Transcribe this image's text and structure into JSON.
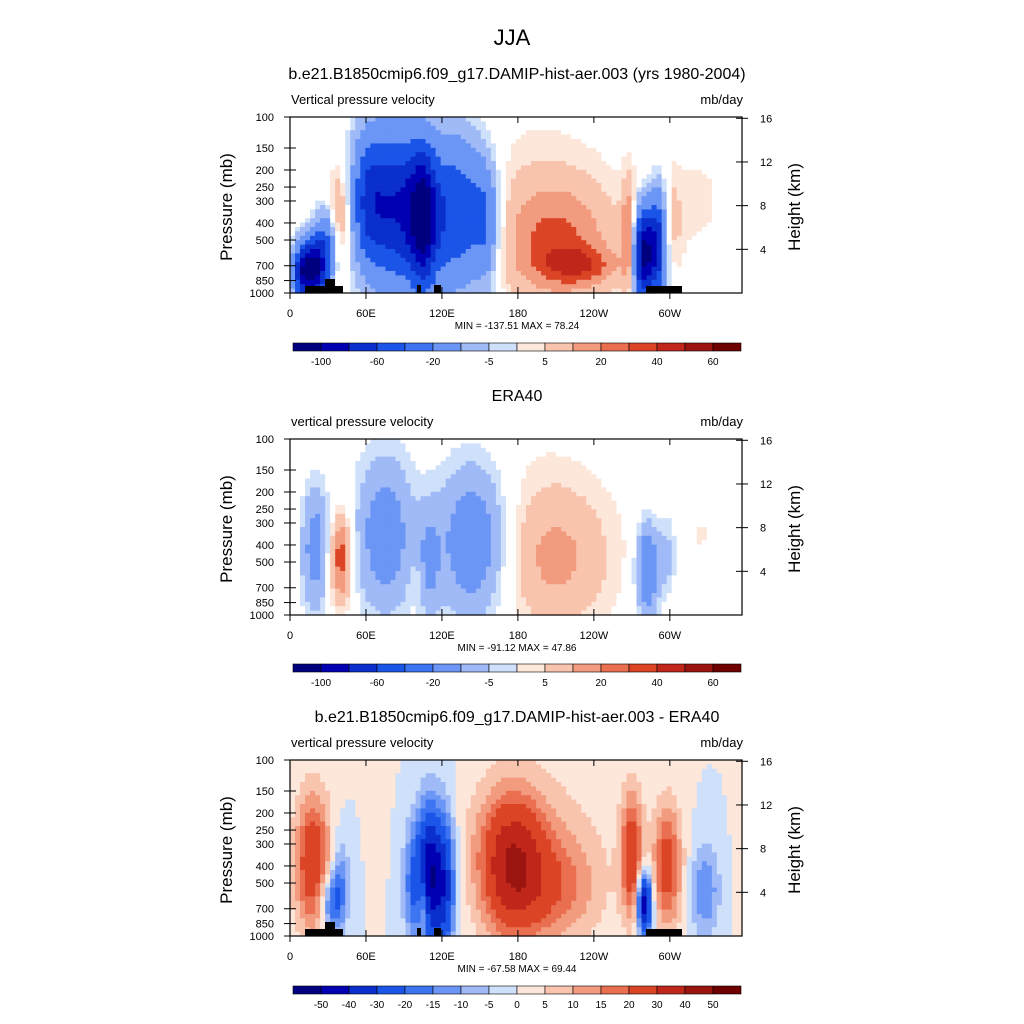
{
  "figure": {
    "title": "JJA"
  },
  "colors": {
    "scale": [
      "#00007f",
      "#0000b2",
      "#0a2fcc",
      "#1a55e8",
      "#3d74f2",
      "#6b96f5",
      "#9fbaf7",
      "#cfe0fb",
      "#ffffff",
      "#fde6da",
      "#f9c4ad",
      "#f29b7e",
      "#ea6e50",
      "#dc4426",
      "#c0261a",
      "#9b1410",
      "#6e0000"
    ]
  },
  "panels": [
    {
      "title": "b.e21.B1850cmip6.f09_g17.DAMIP-hist-aer.003 (yrs 1980-2004)",
      "left_label": "Vertical pressure velocity",
      "right_label": "mb/day",
      "ylabel": "Pressure (mb)",
      "ylabel_right": "Height (km)",
      "stats": "MIN = -137.51  MAX =  78.24",
      "colorbar_labels": [
        "-100",
        "-60",
        "-20",
        "-5",
        "5",
        "20",
        "40",
        "60"
      ]
    },
    {
      "title": "ERA40",
      "left_label": "vertical pressure velocity",
      "right_label": "mb/day",
      "ylabel": "Pressure (mb)",
      "ylabel_right": "Height (km)",
      "stats": "MIN = -91.12  MAX =  47.86",
      "colorbar_labels": [
        "-100",
        "-60",
        "-20",
        "-5",
        "5",
        "20",
        "40",
        "60"
      ]
    },
    {
      "title": "b.e21.B1850cmip6.f09_g17.DAMIP-hist-aer.003 - ERA40",
      "left_label": "vertical pressure velocity",
      "right_label": "mb/day",
      "ylabel": "Pressure (mb)",
      "ylabel_right": "Height (km)",
      "stats": "MIN = -67.58  MAX =  69.44",
      "colorbar_labels": [
        "-50",
        "-40",
        "-30",
        "-20",
        "-15",
        "-10",
        "-5",
        "0",
        "5",
        "10",
        "15",
        "20",
        "30",
        "40",
        "50"
      ]
    }
  ],
  "chart_data": {
    "type": "heatmap",
    "x_ticks": [
      "0",
      "60E",
      "120E",
      "180",
      "120W",
      "60W"
    ],
    "x_tick_values": [
      0,
      60,
      120,
      180,
      240,
      300
    ],
    "xlim": [
      0,
      357
    ],
    "y_ticks": [
      "100",
      "150",
      "200",
      "250",
      "300",
      "400",
      "500",
      "700",
      "850",
      "1000"
    ],
    "y_tick_values": [
      100,
      150,
      200,
      250,
      300,
      400,
      500,
      700,
      850,
      1000
    ],
    "ylim": [
      1000,
      100
    ],
    "y_scale": "log",
    "y2_ticks": [
      "4",
      "8",
      "12",
      "16"
    ],
    "y2_tick_values": [
      4,
      8,
      12,
      16
    ],
    "panels": [
      {
        "blobs": [
          {
            "lon": 10,
            "w": 6,
            "p": 760,
            "h": 0.35,
            "v": -70
          },
          {
            "lon": 20,
            "w": 7,
            "p": 720,
            "h": 0.4,
            "v": -90
          },
          {
            "lon": 30,
            "w": 6,
            "p": 500,
            "h": 0.45,
            "v": -40
          },
          {
            "lon": 38,
            "w": 6,
            "p": 380,
            "h": 0.6,
            "v": 28
          },
          {
            "lon": 62,
            "w": 10,
            "p": 300,
            "h": 0.9,
            "v": -55
          },
          {
            "lon": 85,
            "w": 14,
            "p": 330,
            "h": 1.0,
            "v": -75
          },
          {
            "lon": 105,
            "w": 8,
            "p": 380,
            "h": 0.9,
            "v": -85
          },
          {
            "lon": 130,
            "w": 16,
            "p": 350,
            "h": 1.0,
            "v": -60
          },
          {
            "lon": 155,
            "w": 8,
            "p": 400,
            "h": 0.8,
            "v": -35
          },
          {
            "lon": 210,
            "w": 32,
            "p": 520,
            "h": 0.8,
            "v": 30
          },
          {
            "lon": 230,
            "w": 22,
            "p": 700,
            "h": 0.25,
            "v": 22
          },
          {
            "lon": 195,
            "w": 45,
            "p": 250,
            "h": 1.2,
            "v": 6
          },
          {
            "lon": 268,
            "w": 4,
            "p": 500,
            "h": 0.7,
            "v": 40
          },
          {
            "lon": 280,
            "w": 7,
            "p": 600,
            "h": 0.6,
            "v": -110
          },
          {
            "lon": 292,
            "w": 5,
            "p": 500,
            "h": 0.7,
            "v": -55
          },
          {
            "lon": 300,
            "w": 6,
            "p": 400,
            "h": 0.6,
            "v": 15
          },
          {
            "lon": 322,
            "w": 20,
            "p": 300,
            "h": 0.9,
            "v": 6
          }
        ]
      },
      {
        "blobs": [
          {
            "lon": 20,
            "w": 8,
            "p": 420,
            "h": 0.8,
            "v": -28
          },
          {
            "lon": 40,
            "w": 6,
            "p": 480,
            "h": 0.6,
            "v": 38
          },
          {
            "lon": 75,
            "w": 16,
            "p": 350,
            "h": 1.0,
            "v": -30
          },
          {
            "lon": 100,
            "w": 4,
            "p": 650,
            "h": 0.3,
            "v": 6
          },
          {
            "lon": 110,
            "w": 6,
            "p": 500,
            "h": 0.7,
            "v": -18
          },
          {
            "lon": 145,
            "w": 20,
            "p": 380,
            "h": 1.0,
            "v": -35
          },
          {
            "lon": 210,
            "w": 30,
            "p": 500,
            "h": 0.9,
            "v": 20
          },
          {
            "lon": 195,
            "w": 45,
            "p": 250,
            "h": 1.2,
            "v": 5
          },
          {
            "lon": 282,
            "w": 6,
            "p": 550,
            "h": 0.6,
            "v": -40
          },
          {
            "lon": 298,
            "w": 6,
            "p": 450,
            "h": 0.6,
            "v": -15
          },
          {
            "lon": 325,
            "w": 25,
            "p": 350,
            "h": 1.0,
            "v": 5
          }
        ]
      },
      {
        "blobs": [
          {
            "lon": 18,
            "w": 10,
            "p": 380,
            "h": 0.9,
            "v": 28
          },
          {
            "lon": 32,
            "w": 6,
            "p": 650,
            "h": 0.4,
            "v": -20
          },
          {
            "lon": 40,
            "w": 5,
            "p": 500,
            "h": 0.6,
            "v": -15
          },
          {
            "lon": 98,
            "w": 6,
            "p": 500,
            "h": 0.8,
            "v": -20
          },
          {
            "lon": 110,
            "w": 6,
            "p": 450,
            "h": 0.9,
            "v": -45
          },
          {
            "lon": 122,
            "w": 6,
            "p": 500,
            "h": 0.9,
            "v": -35
          },
          {
            "lon": 105,
            "w": 3,
            "p": 650,
            "h": 0.4,
            "v": 20
          },
          {
            "lon": 175,
            "w": 18,
            "p": 400,
            "h": 0.9,
            "v": 35
          },
          {
            "lon": 210,
            "w": 25,
            "p": 550,
            "h": 0.7,
            "v": 15
          },
          {
            "lon": 195,
            "w": 40,
            "p": 250,
            "h": 1.0,
            "v": 6
          },
          {
            "lon": 270,
            "w": 6,
            "p": 350,
            "h": 0.8,
            "v": 28
          },
          {
            "lon": 280,
            "w": 4,
            "p": 650,
            "h": 0.4,
            "v": -50
          },
          {
            "lon": 298,
            "w": 8,
            "p": 400,
            "h": 0.8,
            "v": 25
          },
          {
            "lon": 328,
            "w": 8,
            "p": 550,
            "h": 0.6,
            "v": -15
          }
        ]
      }
    ]
  }
}
